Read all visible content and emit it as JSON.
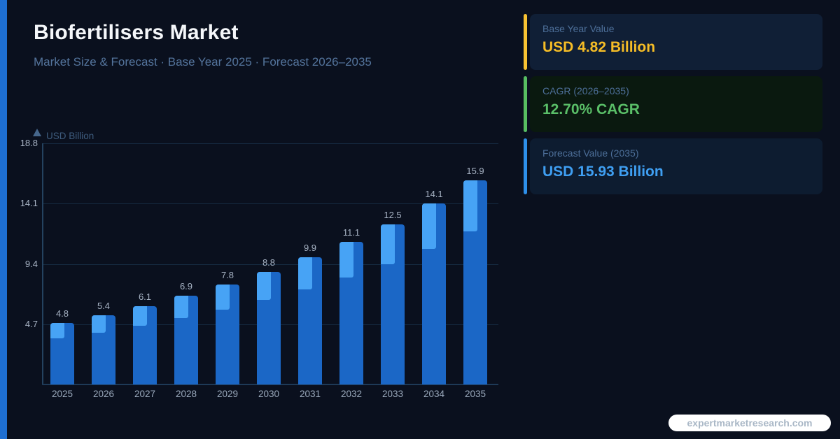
{
  "page": {
    "background_color": "#0a101e",
    "left_accent_color": "#1e6fd2"
  },
  "header": {
    "title": "Biofertilisers Market",
    "subtitle": "Market Size & Forecast  ·  Base Year 2025  ·  Forecast 2026–2035"
  },
  "chart_data": {
    "type": "bar",
    "unit_label": "USD Billion",
    "categories": [
      "2025",
      "2026",
      "2027",
      "2028",
      "2029",
      "2030",
      "2031",
      "2032",
      "2033",
      "2034",
      "2035"
    ],
    "values": [
      4.8,
      5.4,
      6.1,
      6.9,
      7.8,
      8.8,
      9.9,
      11.1,
      12.5,
      14.1,
      15.9
    ],
    "value_labels": [
      "4.8",
      "5.4",
      "6.1",
      "6.9",
      "7.8",
      "8.8",
      "9.9",
      "11.1",
      "12.5",
      "14.1",
      "15.9"
    ],
    "y_ticks": [
      4.7,
      9.4,
      14.1,
      18.8
    ],
    "y_tick_labels": [
      "4.7",
      "9.4",
      "14.1",
      "18.8"
    ],
    "ylim": [
      0,
      18.8
    ],
    "grid": true,
    "legend": "none",
    "bar_color": "#1b67c6",
    "bar_accent_color": "#47a3f5",
    "xlabel": "",
    "ylabel": "USD Billion"
  },
  "cards": [
    {
      "name": "base-year-value",
      "label": "Base Year Value",
      "value": "USD 4.82 Billion",
      "accent_color": "#f8c232",
      "value_color": "#f6bd26",
      "bg_color": "#101f36"
    },
    {
      "name": "cagr",
      "label": "CAGR (2026–2035)",
      "value": "12.70% CAGR",
      "accent_color": "#57bd62",
      "value_color": "#5abf68",
      "bg_color": "#0a190f"
    },
    {
      "name": "forecast-value",
      "label": "Forecast Value (2035)",
      "value": "USD 15.93 Billion",
      "accent_color": "#2e8fe9",
      "value_color": "#3f9ff2",
      "bg_color": "#0d1c30"
    }
  ],
  "footer": {
    "website": "expertmarketresearch.com"
  }
}
